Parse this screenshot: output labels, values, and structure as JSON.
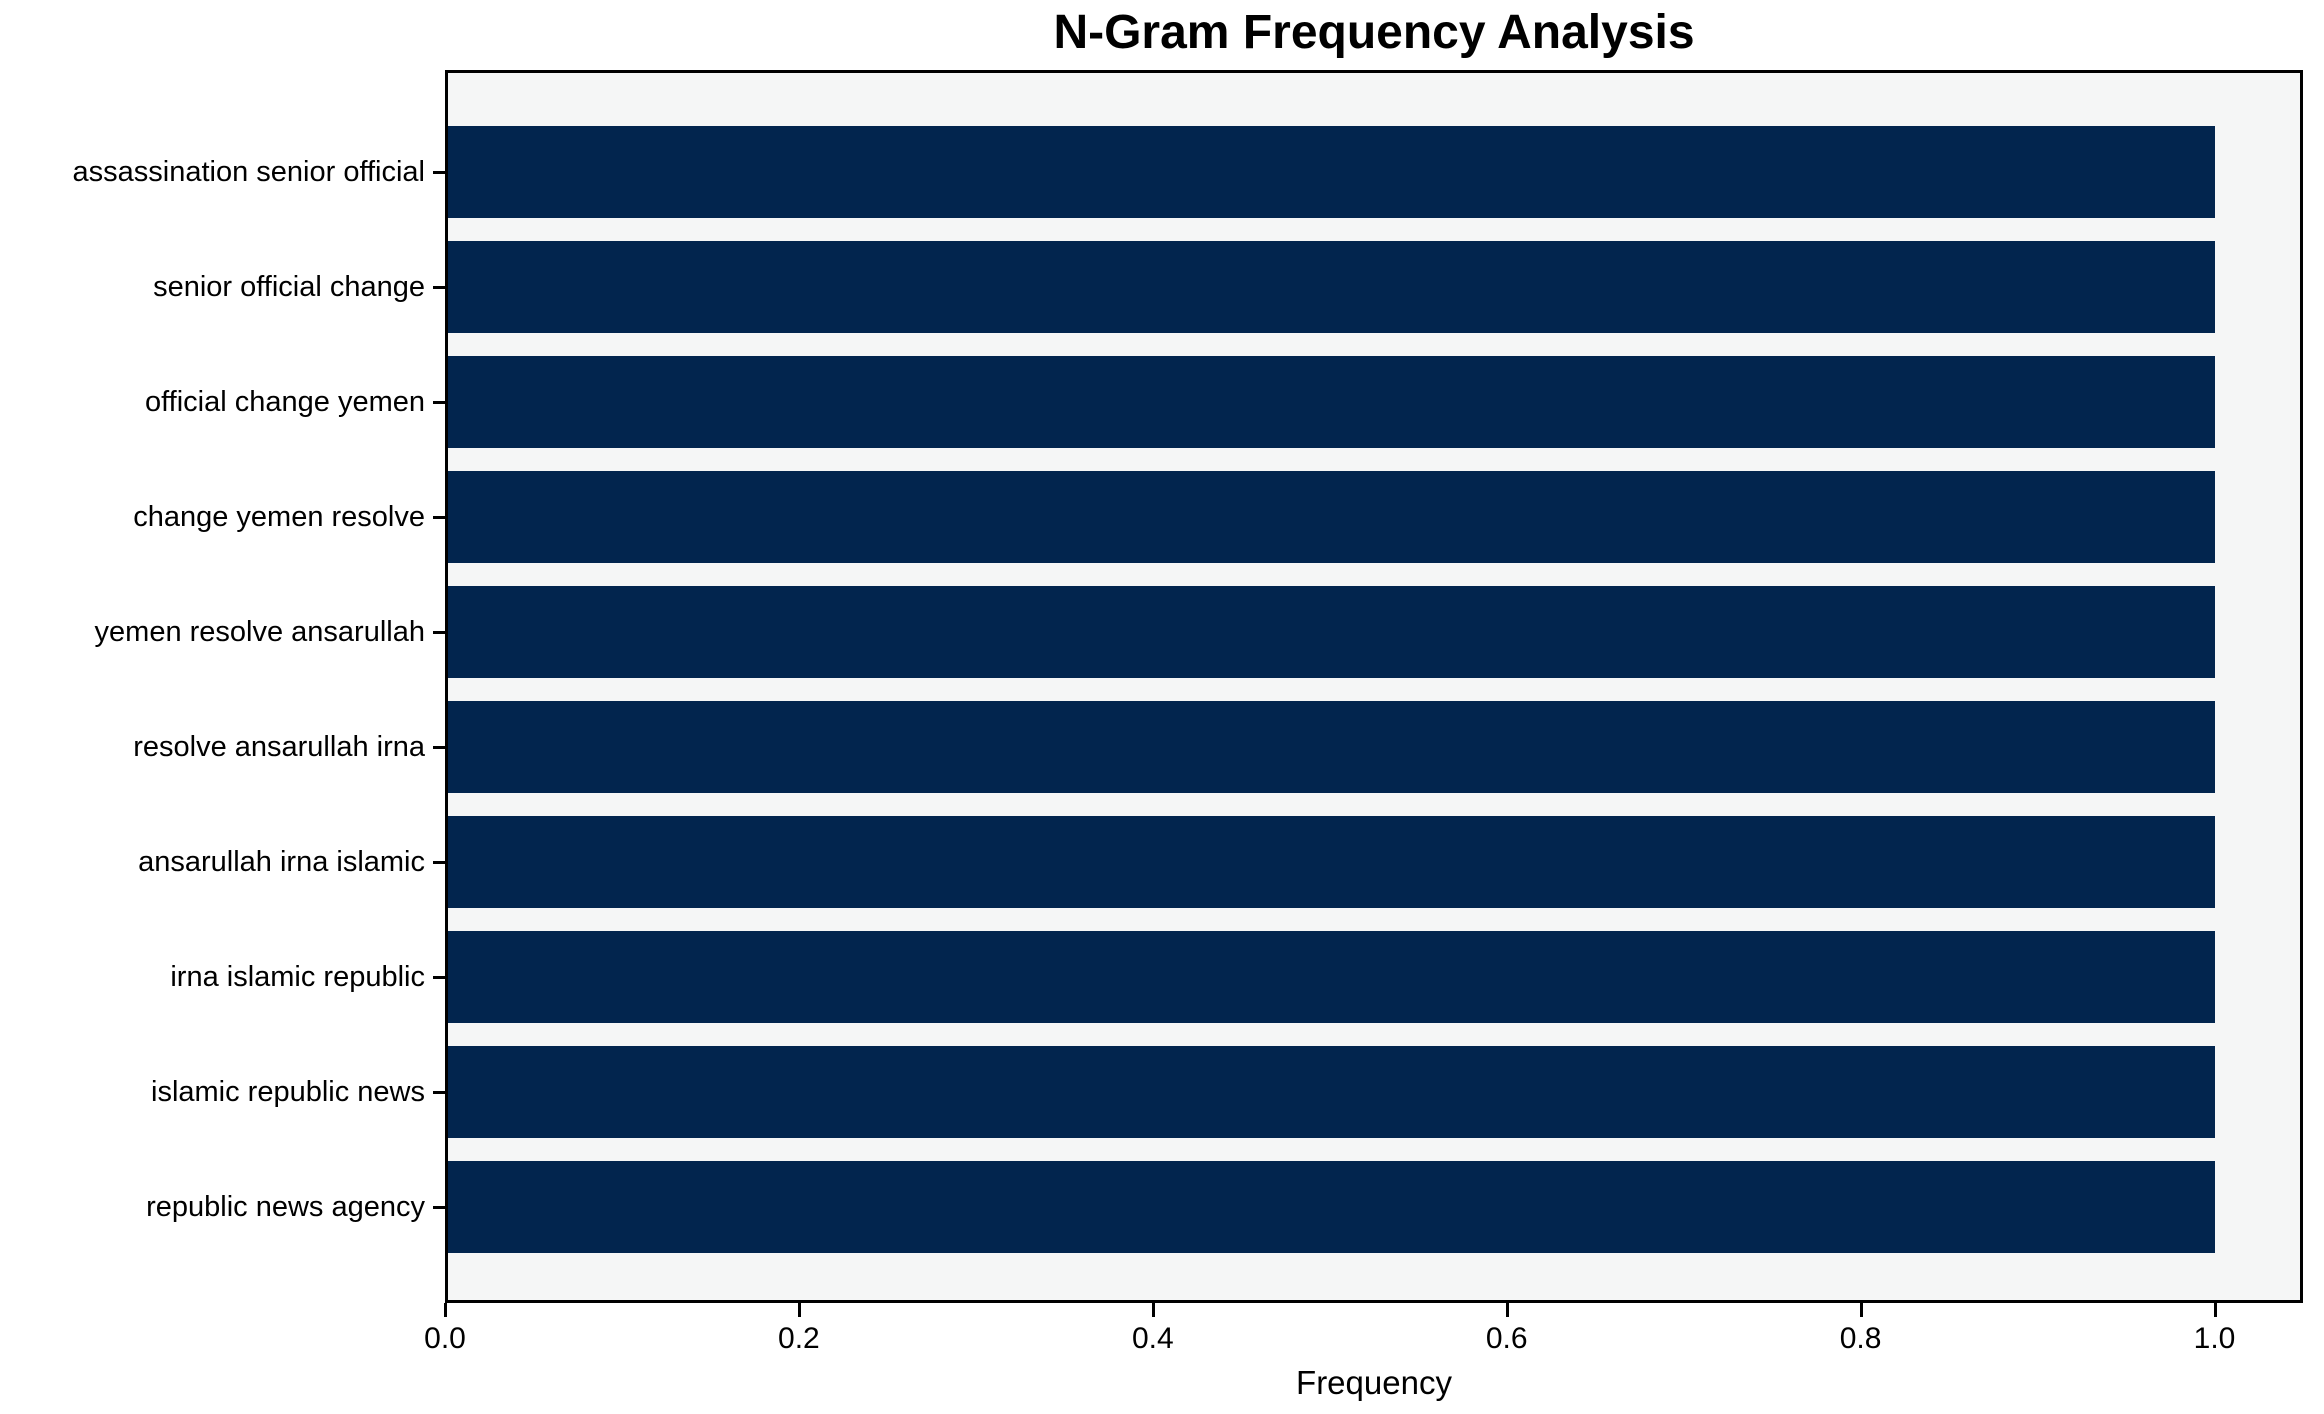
{
  "chart_data": {
    "type": "bar",
    "orientation": "horizontal",
    "title": "N-Gram Frequency Analysis",
    "xlabel": "Frequency",
    "ylabel": "",
    "categories": [
      "assassination senior official",
      "senior official change",
      "official change yemen",
      "change yemen resolve",
      "yemen resolve ansarullah",
      "resolve ansarullah irna",
      "ansarullah irna islamic",
      "irna islamic republic",
      "islamic republic news",
      "republic news agency"
    ],
    "values": [
      1.0,
      1.0,
      1.0,
      1.0,
      1.0,
      1.0,
      1.0,
      1.0,
      1.0,
      1.0
    ],
    "x_ticks": [
      0.0,
      0.2,
      0.4,
      0.6,
      0.8,
      1.0
    ],
    "x_tick_labels": [
      "0.0",
      "0.2",
      "0.4",
      "0.6",
      "0.8",
      "1.0"
    ],
    "xlim": [
      0.0,
      1.05
    ],
    "grid": false,
    "legend": null,
    "colors": {
      "bar": "#02254e",
      "plot_background": "#f5f6f6",
      "figure_background": "#ffffff",
      "spine": "#000000",
      "text": "#000000"
    }
  }
}
